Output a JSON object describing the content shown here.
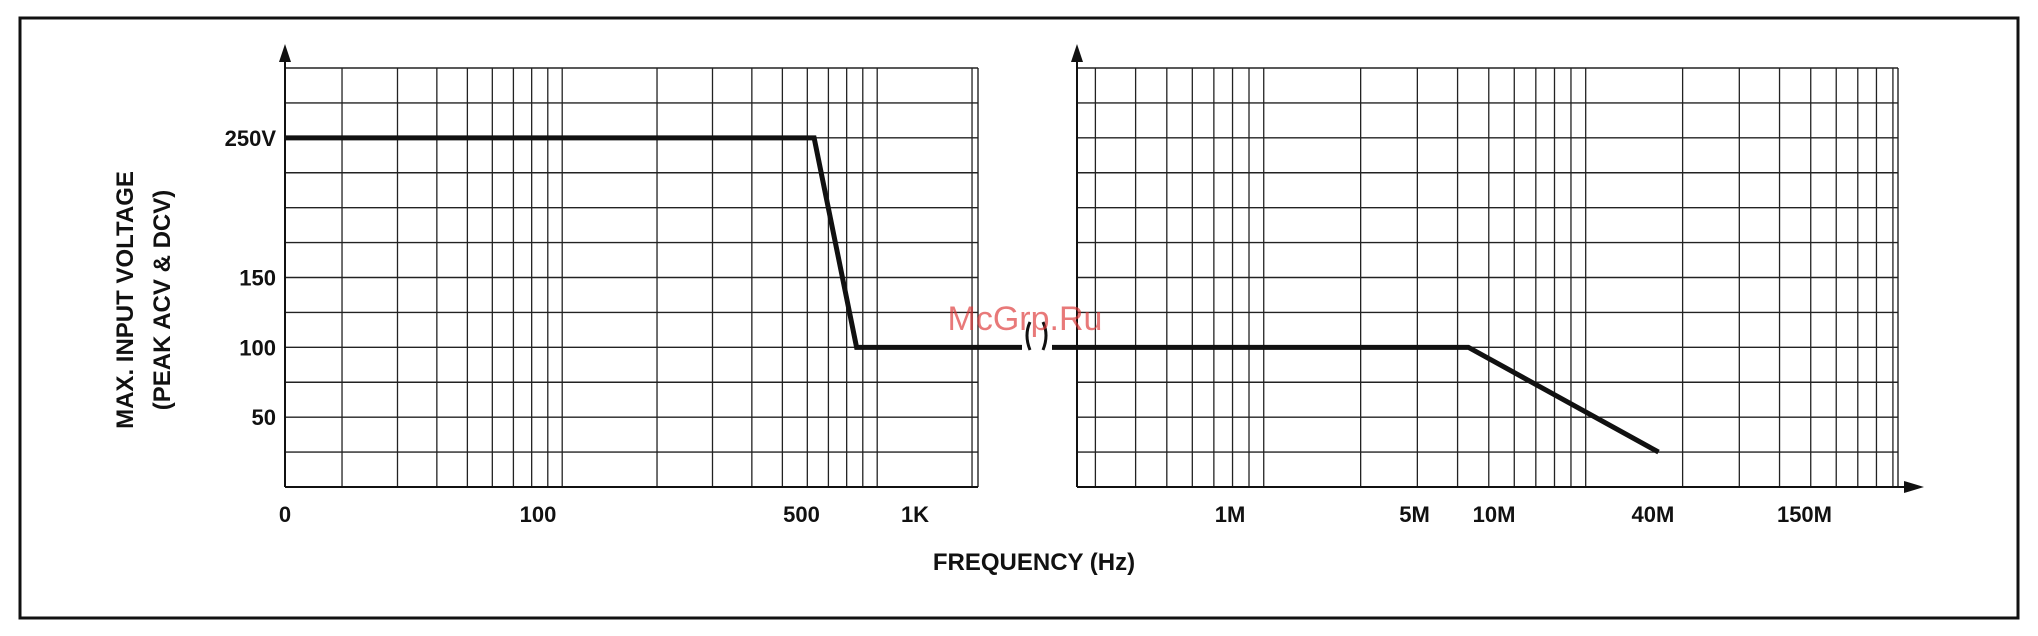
{
  "chart_data": {
    "type": "line",
    "ylabel_line1": "MAX. INPUT VOLTAGE",
    "ylabel_line2": "(PEAK ACV & DCV)",
    "xlabel": "FREQUENCY (Hz)",
    "y_ticks": [
      {
        "value": 250,
        "label": "250V"
      },
      {
        "value": 150,
        "label": "150"
      },
      {
        "value": 100,
        "label": "100"
      },
      {
        "value": 50,
        "label": "50"
      }
    ],
    "x_ticks_left": [
      {
        "value": 0,
        "label": "0"
      },
      {
        "value": 100,
        "label": "100"
      },
      {
        "value": 500,
        "label": "500"
      },
      {
        "value": 1000,
        "label": "1K"
      }
    ],
    "x_ticks_right": [
      {
        "value": 1000000,
        "label": "1M"
      },
      {
        "value": 5000000,
        "label": "5M"
      },
      {
        "value": 10000000,
        "label": "10M"
      },
      {
        "value": 40000000,
        "label": "40M"
      },
      {
        "value": 150000000,
        "label": "150M"
      }
    ],
    "axis_break": true,
    "grid": true,
    "ylim": [
      0,
      300
    ],
    "series": [
      {
        "color": "#111111",
        "points": [
          {
            "x": 0,
            "y": 250
          },
          {
            "x": 540,
            "y": 250
          },
          {
            "x": 700,
            "y": 100
          },
          {
            "x": 8000000,
            "y": 100
          },
          {
            "x": 42000000,
            "y": 25
          }
        ]
      }
    ]
  },
  "watermark": "McGrp.Ru"
}
